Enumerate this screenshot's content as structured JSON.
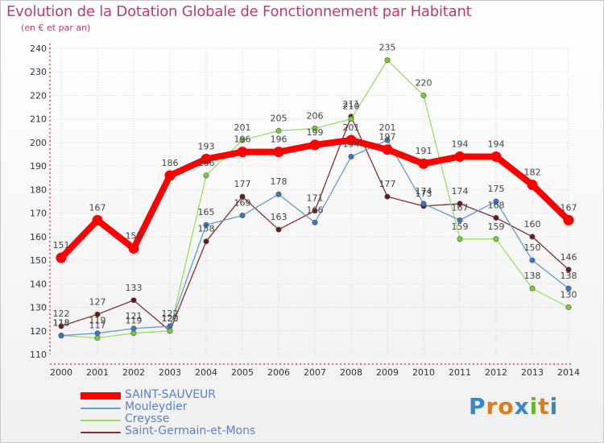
{
  "title": "Evolution de la Dotation Globale de Fonctionnement par Habitant",
  "subtitle": "(en € et par an)",
  "brand": "Proxiti",
  "colors": {
    "title": "#c0396e",
    "axis": "#b00000",
    "grid": "#d8d8d8",
    "legend_text": "#5f80c5"
  },
  "chart_data": {
    "type": "line",
    "title": "Evolution de la Dotation Globale de Fonctionnement par Habitant",
    "subtitle": "(en € et par an)",
    "xlabel": "",
    "ylabel": "",
    "categories": [
      "2000",
      "2001",
      "2002",
      "2003",
      "2004",
      "2005",
      "2006",
      "2007",
      "2008",
      "2009",
      "2010",
      "2011",
      "2012",
      "2013",
      "2014"
    ],
    "ylim": [
      110,
      240
    ],
    "yticks": [
      110,
      120,
      130,
      140,
      150,
      160,
      170,
      180,
      190,
      200,
      210,
      220,
      230,
      240
    ],
    "grid": true,
    "legend_position": "bottom-left",
    "series": [
      {
        "name": "SAINT-SAUVEUR",
        "color": "#ff0000",
        "marker": "#ff0000",
        "width": 8,
        "values": [
          151,
          167,
          155,
          186,
          193,
          196,
          196,
          199,
          201,
          197,
          191,
          194,
          194,
          182,
          167
        ]
      },
      {
        "name": "Mouleydier",
        "color": "#6699cc",
        "marker": "#3377cc",
        "width": 1.3,
        "values": [
          118,
          119,
          121,
          122,
          165,
          169,
          178,
          166,
          194,
          201,
          174,
          167,
          175,
          150,
          138
        ]
      },
      {
        "name": "Creysse",
        "color": "#99dd66",
        "marker": "#77cc33",
        "width": 1.3,
        "values": [
          118,
          117,
          119,
          120,
          186,
          201,
          205,
          206,
          210,
          235,
          220,
          159,
          159,
          138,
          130
        ]
      },
      {
        "name": "Saint-Germain-et-Mons",
        "color": "#803030",
        "marker": "#6a1a1a",
        "width": 1.3,
        "values": [
          122,
          127,
          133,
          120,
          158,
          177,
          163,
          171,
          211,
          177,
          173,
          174,
          168,
          160,
          146
        ]
      }
    ],
    "data_labels": [
      {
        "series": 0,
        "labels": [
          "151",
          "167",
          "155",
          "186",
          "193",
          "196",
          "196",
          "199",
          "201",
          "197",
          "191",
          "194",
          "194",
          "182",
          "167"
        ]
      },
      {
        "series": 1,
        "labels": [
          "118",
          "119",
          "121",
          "122",
          "165",
          "169",
          "178",
          "166",
          "194",
          "201",
          "174",
          "167",
          "175",
          "150",
          "138"
        ]
      },
      {
        "series": 2,
        "labels": [
          "118",
          "117",
          "119",
          "120",
          "186",
          "201",
          "205",
          "206",
          "210",
          "235",
          "220",
          "159",
          "159",
          "138",
          "130"
        ]
      },
      {
        "series": 3,
        "labels": [
          "122",
          "127",
          "133",
          "120",
          "158",
          "177",
          "163",
          "171",
          "211",
          "177",
          "173",
          "174",
          "168",
          "160",
          "146"
        ]
      }
    ]
  }
}
